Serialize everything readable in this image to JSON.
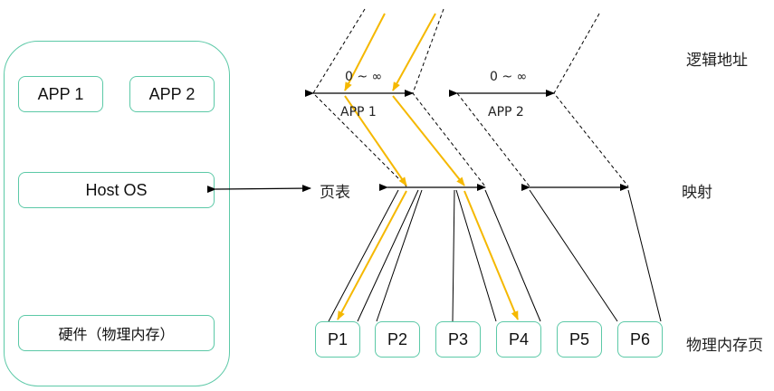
{
  "system": {
    "app1": "APP 1",
    "app2": "APP 2",
    "host_os": "Host OS",
    "hardware": "硬件（物理内存）"
  },
  "page_table_label": "页表",
  "logical": {
    "range1": "0 ~ ∞",
    "range2": "0 ~ ∞",
    "app1": "APP 1",
    "app2": "APP 2"
  },
  "pages": [
    "P1",
    "P2",
    "P3",
    "P4",
    "P5",
    "P6"
  ],
  "right_labels": {
    "logical_address": "逻辑地址",
    "mapping": "映射",
    "physical_pages": "物理内存页"
  },
  "colors": {
    "box_border": "#5cc9a7",
    "arrow_highlight": "#f5b800",
    "line": "#000000"
  }
}
